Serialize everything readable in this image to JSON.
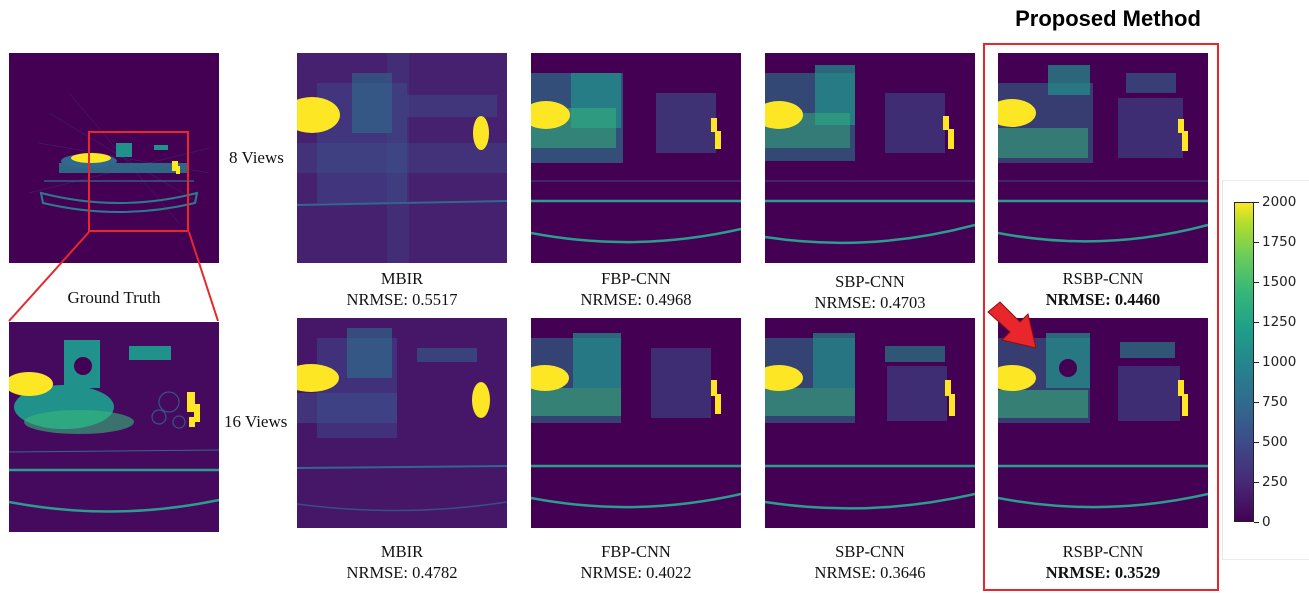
{
  "header": {
    "proposed_title": "Proposed Method"
  },
  "ground_truth": {
    "label": "Ground Truth"
  },
  "rows": [
    {
      "label": "8 Views",
      "panels": [
        {
          "method": "MBIR",
          "nrmse": "NRMSE: 0.5517",
          "bold": false
        },
        {
          "method": "FBP-CNN",
          "nrmse": "NRMSE: 0.4968",
          "bold": false
        },
        {
          "method": "SBP-CNN",
          "nrmse": "NRMSE: 0.4703",
          "bold": false
        },
        {
          "method": "RSBP-CNN",
          "nrmse": "NRMSE: 0.4460",
          "bold": true
        }
      ]
    },
    {
      "label": "16 Views",
      "panels": [
        {
          "method": "MBIR",
          "nrmse": "NRMSE: 0.4782",
          "bold": false
        },
        {
          "method": "FBP-CNN",
          "nrmse": "NRMSE: 0.4022",
          "bold": false
        },
        {
          "method": "SBP-CNN",
          "nrmse": "NRMSE: 0.3646",
          "bold": false
        },
        {
          "method": "RSBP-CNN",
          "nrmse": "NRMSE: 0.3529",
          "bold": true
        }
      ]
    }
  ],
  "colorbar": {
    "min": 0,
    "max": 2000,
    "ticks": [
      "2000",
      "1750",
      "1500",
      "1250",
      "1000",
      "750",
      "500",
      "250",
      "0"
    ],
    "colormap": "viridis"
  },
  "colors": {
    "highlight": "#e8262b",
    "background": "#440154"
  }
}
